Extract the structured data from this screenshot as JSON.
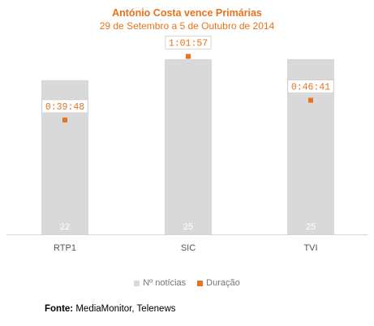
{
  "chart_data": {
    "type": "bar",
    "title": "António Costa vence Primárias",
    "subtitle": "29 de Setembro a 5 de Outubro de 2014",
    "categories": [
      "RTP1",
      "SIC",
      "TVI"
    ],
    "series": [
      {
        "name": "Nº notícias",
        "kind": "bar",
        "color": "#d9d9d9",
        "values": [
          22,
          25,
          25
        ]
      },
      {
        "name": "Duração",
        "kind": "point",
        "color": "#e8731c",
        "values": [
          "0:39:48",
          "1:01:57",
          "0:46:41"
        ],
        "seconds": [
          2388,
          3717,
          2801
        ]
      }
    ],
    "ylim": [
      0,
      28
    ],
    "grid": false,
    "legend_position": "bottom"
  },
  "source": {
    "label": "Fonte:",
    "text": "MediaMonitor, Telenews"
  },
  "colors": {
    "accent": "#e8731c",
    "bar": "#d9d9d9",
    "axis_text": "#555555"
  }
}
